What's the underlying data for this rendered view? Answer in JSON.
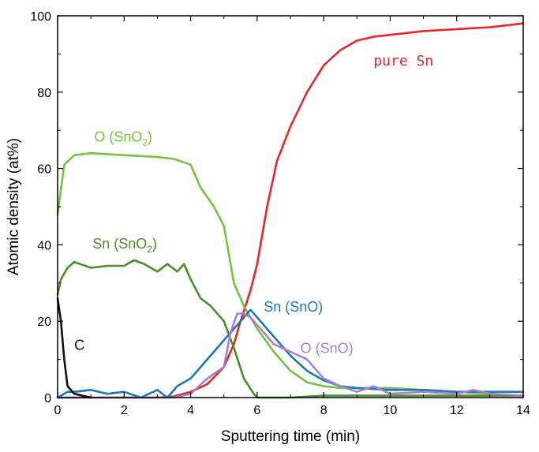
{
  "chart_data": {
    "type": "line",
    "title": "",
    "xlabel": "Sputtering time (min)",
    "ylabel": "Atomic density (at%)",
    "xlim": [
      0,
      14
    ],
    "ylim": [
      0,
      100
    ],
    "xticks": [
      0,
      2,
      4,
      6,
      8,
      10,
      12,
      14
    ],
    "yticks": [
      0,
      20,
      40,
      60,
      80,
      100
    ],
    "grid": false,
    "legend": "none",
    "series": [
      {
        "name": "pure Sn",
        "color": "#e8262a",
        "points": [
          [
            0,
            0
          ],
          [
            1,
            0
          ],
          [
            2,
            0
          ],
          [
            3,
            0
          ],
          [
            3.5,
            0.3
          ],
          [
            4,
            1.5
          ],
          [
            4.5,
            3.5
          ],
          [
            5,
            8
          ],
          [
            5.3,
            14
          ],
          [
            5.5,
            20
          ],
          [
            5.8,
            28
          ],
          [
            6,
            35
          ],
          [
            6.3,
            50
          ],
          [
            6.6,
            62
          ],
          [
            7,
            71
          ],
          [
            7.5,
            80
          ],
          [
            8,
            87
          ],
          [
            8.5,
            91
          ],
          [
            9,
            93.5
          ],
          [
            9.5,
            94.5
          ],
          [
            10,
            95
          ],
          [
            11,
            96
          ],
          [
            12,
            96.5
          ],
          [
            13,
            97
          ],
          [
            14,
            98
          ]
        ]
      },
      {
        "name": "O (SnO2)",
        "color": "#77c142",
        "points": [
          [
            0,
            48
          ],
          [
            0.2,
            61
          ],
          [
            0.5,
            63.5
          ],
          [
            1,
            64
          ],
          [
            2,
            63.5
          ],
          [
            3,
            63
          ],
          [
            3.5,
            62.5
          ],
          [
            4,
            61
          ],
          [
            4.3,
            55
          ],
          [
            4.7,
            50
          ],
          [
            5,
            45
          ],
          [
            5.3,
            30
          ],
          [
            5.6,
            24
          ],
          [
            6,
            18
          ],
          [
            6.5,
            12
          ],
          [
            7,
            7
          ],
          [
            7.5,
            4
          ],
          [
            8,
            3
          ],
          [
            8.5,
            2.5
          ],
          [
            9,
            2.5
          ],
          [
            10,
            2.5
          ],
          [
            11,
            2
          ],
          [
            12,
            1.5
          ],
          [
            13,
            1
          ],
          [
            14,
            0.5
          ]
        ]
      },
      {
        "name": "Sn (SnO2)",
        "color": "#4c8c2b",
        "points": [
          [
            0,
            27
          ],
          [
            0.1,
            31
          ],
          [
            0.3,
            34
          ],
          [
            0.5,
            35.5
          ],
          [
            1,
            34
          ],
          [
            1.5,
            34.5
          ],
          [
            2,
            34.5
          ],
          [
            2.3,
            36
          ],
          [
            2.6,
            35
          ],
          [
            3,
            33
          ],
          [
            3.3,
            35
          ],
          [
            3.6,
            33
          ],
          [
            3.8,
            35
          ],
          [
            4,
            31
          ],
          [
            4.3,
            26
          ],
          [
            4.6,
            24
          ],
          [
            5,
            20
          ],
          [
            5.3,
            13
          ],
          [
            5.6,
            5
          ],
          [
            5.9,
            1
          ],
          [
            6,
            0
          ],
          [
            7,
            0
          ],
          [
            8,
            0.5
          ],
          [
            9,
            0.5
          ],
          [
            10,
            0.5
          ],
          [
            12,
            0.5
          ],
          [
            14,
            0.5
          ]
        ]
      },
      {
        "name": "Sn (SnO)",
        "color": "#1f78b4",
        "points": [
          [
            0,
            0
          ],
          [
            0.3,
            1.5
          ],
          [
            0.5,
            1.5
          ],
          [
            1,
            2
          ],
          [
            1.5,
            1
          ],
          [
            2,
            1.5
          ],
          [
            2.5,
            0
          ],
          [
            3,
            2
          ],
          [
            3.3,
            0
          ],
          [
            3.6,
            3
          ],
          [
            4,
            5
          ],
          [
            4.5,
            10
          ],
          [
            5,
            15
          ],
          [
            5.5,
            20
          ],
          [
            5.8,
            23
          ],
          [
            6,
            21
          ],
          [
            6.5,
            16
          ],
          [
            7,
            11
          ],
          [
            7.5,
            7
          ],
          [
            8,
            4.5
          ],
          [
            8.5,
            3
          ],
          [
            9,
            2.5
          ],
          [
            10,
            2
          ],
          [
            11,
            2
          ],
          [
            12,
            1.5
          ],
          [
            13,
            1.5
          ],
          [
            14,
            1.5
          ]
        ]
      },
      {
        "name": "O (SnO)",
        "color": "#a97fd0",
        "points": [
          [
            0,
            0
          ],
          [
            3,
            0
          ],
          [
            3.5,
            0
          ],
          [
            4,
            1
          ],
          [
            4.5,
            5
          ],
          [
            5,
            8
          ],
          [
            5.2,
            17
          ],
          [
            5.4,
            22
          ],
          [
            5.6,
            22
          ],
          [
            5.8,
            21
          ],
          [
            6,
            19
          ],
          [
            6.5,
            14
          ],
          [
            7,
            12
          ],
          [
            7.5,
            10
          ],
          [
            8,
            5
          ],
          [
            8.5,
            3
          ],
          [
            9,
            1.5
          ],
          [
            9.5,
            3
          ],
          [
            10,
            1
          ],
          [
            11,
            1.5
          ],
          [
            12,
            1
          ],
          [
            12.5,
            2
          ],
          [
            13,
            1
          ],
          [
            14,
            0.5
          ]
        ]
      },
      {
        "name": "C",
        "color": "#111111",
        "points": [
          [
            0,
            26
          ],
          [
            0.1,
            20
          ],
          [
            0.2,
            10
          ],
          [
            0.3,
            3
          ],
          [
            0.5,
            1
          ],
          [
            1,
            0
          ]
        ]
      }
    ],
    "annotations": [
      {
        "text": "pure Sn",
        "series": "pure Sn",
        "x": 9.5,
        "y": 87,
        "anchor": "start"
      },
      {
        "text": "O (SnO",
        "sub": "2",
        "suffix": ")",
        "series": "O (SnO2)",
        "x": 1.1,
        "y": 67,
        "anchor": "start"
      },
      {
        "text": "Sn (SnO",
        "sub": "2",
        "suffix": ")",
        "series": "Sn (SnO2)",
        "x": 1.05,
        "y": 39,
        "anchor": "start"
      },
      {
        "text": "Sn (SnO)",
        "series": "Sn (SnO)",
        "x": 6.2,
        "y": 22.5,
        "anchor": "start"
      },
      {
        "text": "O (SnO)",
        "series": "O (SnO)",
        "x": 7.3,
        "y": 11.7,
        "anchor": "start"
      },
      {
        "text": "C",
        "series": "C",
        "x": 0.5,
        "y": 12.5,
        "anchor": "start"
      }
    ]
  }
}
